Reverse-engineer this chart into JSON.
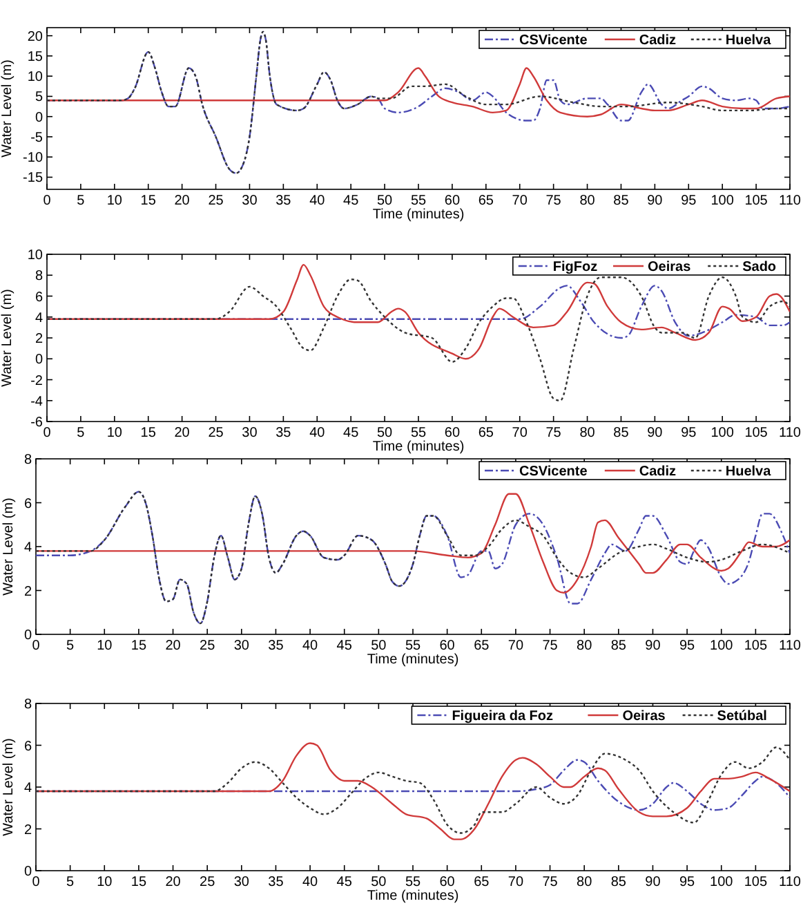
{
  "chart_data": [
    {
      "type": "line",
      "xlabel": "Time (minutes)",
      "ylabel": "Water Level (m)",
      "xlim": [
        0,
        110
      ],
      "xticks": [
        0,
        5,
        10,
        15,
        20,
        25,
        30,
        35,
        40,
        45,
        50,
        55,
        60,
        65,
        70,
        75,
        80,
        85,
        90,
        95,
        100,
        105,
        110
      ],
      "ylim": [
        -18,
        22
      ],
      "yticks": [
        -15,
        -10,
        -5,
        0,
        5,
        10,
        15,
        20
      ],
      "legend": "top right",
      "grid": false,
      "series": [
        {
          "name": "CSVicente",
          "color": "#4b4bb4",
          "line_style": "dashed",
          "x": [
            0,
            11,
            12,
            13,
            15,
            16,
            17,
            18,
            19,
            21,
            22,
            23,
            25,
            27,
            28,
            29,
            30,
            31,
            31.6,
            32,
            32.4,
            33,
            34,
            37,
            38,
            40,
            41,
            42,
            43,
            44,
            46,
            48,
            49,
            50,
            52,
            55,
            57,
            59,
            61,
            63,
            65,
            66,
            68,
            71,
            72,
            73,
            74,
            75,
            76,
            77,
            80,
            82,
            83,
            85,
            86,
            88,
            89,
            91,
            92,
            94,
            95,
            97,
            98,
            100,
            102,
            104,
            105,
            106,
            108,
            110
          ],
          "values": [
            4,
            4,
            4.5,
            7,
            16,
            12,
            6,
            2.5,
            2.5,
            12,
            10,
            3,
            -5,
            -13,
            -14,
            -12,
            -5,
            10,
            19,
            21,
            19,
            10,
            3,
            1.5,
            2,
            8,
            11,
            9,
            4,
            2,
            3,
            5,
            4.5,
            2,
            1,
            2.5,
            5,
            7,
            6,
            4,
            6,
            5,
            1,
            -1,
            -1,
            2,
            9,
            9,
            4,
            3,
            4.5,
            4.5,
            3,
            -1,
            -1,
            6,
            8,
            3,
            2,
            4,
            5,
            7.5,
            7,
            4.5,
            4,
            4.5,
            4,
            2,
            2,
            2.5
          ]
        },
        {
          "name": "Cadiz",
          "color": "#d03a3a",
          "line_style": "solid",
          "x": [
            0,
            50,
            52,
            55,
            56,
            58,
            60,
            63,
            66,
            68,
            70,
            71,
            72,
            74,
            76,
            80,
            82,
            85,
            88,
            90,
            92,
            95,
            97,
            100,
            103,
            105,
            108,
            110
          ],
          "values": [
            4,
            4,
            6,
            12,
            10,
            5,
            3.5,
            2.5,
            1,
            1.5,
            8,
            12,
            10,
            4,
            1,
            0,
            0.5,
            3,
            2,
            1.5,
            1.5,
            3,
            4,
            2.5,
            2,
            2,
            4.5,
            5
          ]
        },
        {
          "name": "Huelva",
          "color": "#333333",
          "line_style": "dotted",
          "x": [
            0,
            11,
            12,
            13,
            15,
            16,
            17,
            18,
            19,
            21,
            22,
            23,
            25,
            27,
            28,
            29,
            30,
            31,
            31.6,
            32,
            32.4,
            33,
            34,
            37,
            38,
            40,
            41,
            42,
            43,
            44,
            46,
            48,
            49,
            51,
            54,
            56,
            59,
            62,
            65,
            68,
            73,
            78,
            82,
            86,
            92,
            97,
            100,
            104,
            108,
            110
          ],
          "values": [
            4,
            4,
            4.5,
            7,
            16,
            12,
            6,
            2.5,
            2.5,
            12,
            10,
            3,
            -5,
            -13,
            -14,
            -12,
            -5,
            10,
            19,
            21,
            19,
            10,
            3,
            1.5,
            2,
            8,
            11,
            9,
            4,
            2,
            3,
            5,
            4.5,
            4.5,
            7.5,
            7.5,
            8,
            5,
            3,
            3,
            5,
            3.5,
            2.5,
            2.5,
            3.5,
            2.5,
            1.5,
            1.5,
            2,
            2
          ]
        }
      ]
    },
    {
      "type": "line",
      "xlabel": "Time (minutes)",
      "ylabel": "Water Level (m)",
      "xlim": [
        0,
        110
      ],
      "xticks": [
        0,
        5,
        10,
        15,
        20,
        25,
        30,
        35,
        40,
        45,
        50,
        55,
        60,
        65,
        70,
        75,
        80,
        85,
        90,
        95,
        100,
        105,
        110
      ],
      "ylim": [
        -6,
        10
      ],
      "yticks": [
        -6,
        -4,
        -2,
        0,
        2,
        4,
        6,
        8,
        10
      ],
      "legend": "top right",
      "grid": false,
      "series": [
        {
          "name": "FigFoz",
          "color": "#4b4bb4",
          "line_style": "dashed",
          "x": [
            0,
            70,
            73,
            76,
            77,
            79,
            81,
            85,
            86,
            88,
            90,
            91,
            93,
            95,
            97,
            100,
            102,
            105,
            107,
            109,
            110
          ],
          "values": [
            3.8,
            3.8,
            5,
            6.8,
            7,
            5.5,
            3.5,
            2,
            2.2,
            5,
            7,
            6.5,
            3.5,
            2.2,
            2.5,
            3.5,
            4.2,
            4,
            3.2,
            3.2,
            3.5
          ]
        },
        {
          "name": "Oeiras",
          "color": "#d03a3a",
          "line_style": "solid",
          "x": [
            0,
            33,
            35,
            37,
            38,
            39,
            41,
            43,
            46,
            49,
            51,
            52,
            53,
            55,
            60,
            62,
            64,
            66,
            67,
            69,
            72,
            75,
            77,
            80,
            81,
            83,
            85,
            88,
            91,
            93,
            96,
            98,
            100,
            101,
            103,
            105,
            107,
            108,
            110
          ],
          "values": [
            3.8,
            3.8,
            4.5,
            7.5,
            9,
            8,
            5,
            4,
            3.5,
            3.5,
            4.5,
            4.8,
            4.5,
            2.5,
            0.5,
            0,
            1,
            4,
            4.8,
            4,
            3,
            3.2,
            4.5,
            7.3,
            7.2,
            5,
            3.5,
            2.8,
            3,
            2.5,
            1.8,
            2.5,
            5,
            4.8,
            3.6,
            4,
            6,
            6.2,
            4.5
          ]
        },
        {
          "name": "Sado",
          "color": "#333333",
          "line_style": "dotted",
          "x": [
            0,
            25,
            27,
            30,
            32,
            34,
            36,
            38,
            39,
            41,
            43,
            45,
            46,
            48,
            50,
            53,
            57,
            60,
            62,
            64,
            66,
            68,
            69,
            71,
            73,
            75,
            76,
            78,
            80,
            82,
            85,
            88,
            90,
            91,
            94,
            96,
            98,
            100,
            102,
            103,
            105,
            107,
            109,
            110
          ],
          "values": [
            3.8,
            3.8,
            4.5,
            6.9,
            6,
            5,
            3,
            1,
            0.8,
            3,
            6,
            7.6,
            7.5,
            5.5,
            4,
            2.5,
            2,
            -0.3,
            1,
            3.5,
            5,
            5.8,
            5.8,
            3.5,
            0,
            -3.8,
            -4,
            1,
            6,
            7.8,
            7.8,
            6,
            3,
            2.5,
            2.5,
            2,
            6,
            7.8,
            6,
            4,
            3.5,
            5,
            5.5,
            5
          ]
        }
      ]
    },
    {
      "type": "line",
      "xlabel": "Time (minutes)",
      "ylabel": "Water Level (m)",
      "xlim": [
        0,
        110
      ],
      "xticks": [
        0,
        5,
        10,
        15,
        20,
        25,
        30,
        35,
        40,
        45,
        50,
        55,
        60,
        65,
        70,
        75,
        80,
        85,
        90,
        95,
        100,
        105,
        110
      ],
      "ylim": [
        0,
        8
      ],
      "yticks": [
        0,
        2,
        4,
        6,
        8
      ],
      "legend": "top right",
      "grid": false,
      "series": [
        {
          "name": "CSVicente",
          "color": "#4b4bb4",
          "line_style": "dashed",
          "x": [
            0,
            5,
            8,
            10,
            13,
            15,
            16,
            17,
            18,
            19,
            20,
            21,
            22,
            23,
            24,
            25,
            26,
            27,
            28,
            29,
            30,
            31,
            32,
            33,
            34,
            35,
            36,
            38,
            39,
            40,
            42,
            44,
            45,
            47,
            49,
            51,
            52,
            53,
            55,
            56,
            57,
            58,
            60,
            62,
            63,
            65,
            66,
            67,
            68,
            70,
            72,
            74,
            76,
            78,
            79,
            81,
            83,
            84,
            86,
            88,
            89,
            90,
            92,
            94,
            95,
            96,
            97,
            98,
            100,
            101,
            102,
            104,
            105,
            106,
            107,
            109,
            110
          ],
          "values": [
            3.6,
            3.6,
            3.8,
            4.3,
            5.8,
            6.5,
            6,
            4.5,
            2.5,
            1.5,
            1.6,
            2.5,
            2.3,
            1,
            0.5,
            1.5,
            3.5,
            4.5,
            3.5,
            2.5,
            3,
            5,
            6.3,
            5.5,
            3.5,
            2.8,
            3.2,
            4.5,
            4.7,
            4.5,
            3.5,
            3.4,
            3.6,
            4.5,
            4.3,
            3.2,
            2.4,
            2.2,
            3.2,
            4.5,
            5.4,
            5.4,
            4.5,
            2.6,
            2.7,
            3.8,
            3.8,
            3,
            3.2,
            5,
            5.5,
            5,
            3.5,
            1.4,
            1.4,
            2.5,
            3.7,
            4.1,
            3.8,
            4.8,
            5.4,
            5.4,
            4.5,
            3.3,
            3.2,
            3.8,
            4.3,
            4,
            2.6,
            2.3,
            2.4,
            3.3,
            4.5,
            5.5,
            5.5,
            4.5,
            3.7
          ]
        },
        {
          "name": "Cadiz",
          "color": "#d03a3a",
          "line_style": "solid",
          "x": [
            0,
            55,
            60,
            63,
            65,
            67,
            69,
            70,
            72,
            74,
            76,
            77,
            79,
            81,
            82,
            83,
            85,
            88,
            89,
            90,
            92,
            94,
            95,
            97,
            100,
            101,
            103,
            104,
            106,
            108,
            110
          ],
          "values": [
            3.8,
            3.8,
            3.6,
            3.5,
            3.7,
            5,
            6.4,
            6.4,
            5,
            3.3,
            2,
            1.9,
            2.5,
            4,
            5.1,
            5.2,
            4.4,
            3.2,
            2.8,
            2.8,
            3.4,
            4.1,
            4.1,
            3.5,
            2.9,
            3,
            3.8,
            4.2,
            4,
            4,
            4.3
          ]
        },
        {
          "name": "Huelva",
          "color": "#333333",
          "line_style": "dotted",
          "x": [
            0,
            5,
            8,
            10,
            13,
            15,
            16,
            17,
            18,
            19,
            20,
            21,
            22,
            23,
            24,
            25,
            26,
            27,
            28,
            29,
            30,
            31,
            32,
            33,
            34,
            35,
            36,
            38,
            39,
            40,
            42,
            44,
            45,
            47,
            49,
            51,
            52,
            53,
            55,
            56,
            57,
            58,
            60,
            62,
            64,
            66,
            68,
            70,
            72,
            74,
            76,
            78,
            80,
            82,
            85,
            88,
            90,
            92,
            95,
            98,
            100,
            103,
            106,
            110
          ],
          "values": [
            3.8,
            3.8,
            3.8,
            4.3,
            5.8,
            6.5,
            6,
            4.5,
            2.5,
            1.5,
            1.6,
            2.5,
            2.3,
            1,
            0.5,
            1.5,
            3.5,
            4.5,
            3.5,
            2.5,
            3,
            5,
            6.3,
            5.5,
            3.5,
            2.8,
            3.2,
            4.5,
            4.7,
            4.5,
            3.5,
            3.4,
            3.6,
            4.5,
            4.3,
            3.2,
            2.4,
            2.2,
            3.2,
            4.5,
            5.4,
            5.4,
            4.5,
            3.6,
            3.6,
            4,
            4.8,
            5.2,
            4.9,
            4.5,
            3.5,
            2.8,
            2.6,
            3,
            3.7,
            4,
            4.1,
            3.9,
            3.5,
            3.3,
            3.4,
            3.8,
            4.1,
            3.7
          ]
        }
      ]
    },
    {
      "type": "line",
      "xlabel": "Time (minutes)",
      "ylabel": "Water Level (m)",
      "xlim": [
        0,
        110
      ],
      "xticks": [
        0,
        5,
        10,
        15,
        20,
        25,
        30,
        35,
        40,
        45,
        50,
        55,
        60,
        65,
        70,
        75,
        80,
        85,
        90,
        95,
        100,
        105,
        110
      ],
      "ylim": [
        0,
        8
      ],
      "yticks": [
        0,
        2,
        4,
        6,
        8
      ],
      "legend": "top right",
      "grid": false,
      "series": [
        {
          "name": "Figueira da Foz",
          "color": "#4b4bb4",
          "line_style": "dashed",
          "x": [
            0,
            70,
            73,
            75,
            77,
            79,
            80,
            82,
            85,
            88,
            90,
            92,
            93,
            95,
            97,
            99,
            101,
            103,
            105,
            106,
            108,
            110
          ],
          "values": [
            3.8,
            3.8,
            3.9,
            4.1,
            4.8,
            5.3,
            5.2,
            4.3,
            3.3,
            2.9,
            3.2,
            4,
            4.2,
            3.8,
            3.2,
            2.9,
            3,
            3.6,
            4.3,
            4.5,
            4.2,
            3.5
          ]
        },
        {
          "name": "Oeiras",
          "color": "#d03a3a",
          "line_style": "solid",
          "x": [
            0,
            34,
            36,
            38,
            40,
            41,
            43,
            45,
            47,
            49,
            52,
            54,
            57,
            59,
            61,
            62,
            64,
            66,
            68,
            70,
            71,
            73,
            75,
            77,
            78,
            80,
            82,
            83,
            85,
            88,
            90,
            92,
            95,
            97,
            99,
            101,
            103,
            105,
            107,
            110
          ],
          "values": [
            3.8,
            3.8,
            4.3,
            5.5,
            6.1,
            6,
            4.8,
            4.3,
            4.3,
            4,
            3.2,
            2.7,
            2.5,
            2,
            1.5,
            1.5,
            2,
            3.2,
            4.5,
            5.3,
            5.4,
            5.1,
            4.5,
            4,
            4,
            4.5,
            4.9,
            4.8,
            3.9,
            2.8,
            2.6,
            2.6,
            3,
            3.8,
            4.4,
            4.4,
            4.5,
            4.7,
            4.4,
            3.8
          ]
        },
        {
          "name": "Setúbal",
          "color": "#333333",
          "line_style": "dotted",
          "x": [
            0,
            26,
            28,
            30,
            32,
            34,
            36,
            38,
            40,
            42,
            44,
            46,
            48,
            50,
            52,
            54,
            56,
            58,
            60,
            62,
            64,
            65,
            68,
            70,
            73,
            75,
            77,
            79,
            81,
            83,
            86,
            88,
            90,
            93,
            96,
            98,
            100,
            102,
            104,
            106,
            108,
            110
          ],
          "values": [
            3.8,
            3.8,
            4.2,
            4.9,
            5.2,
            4.9,
            4.2,
            3.5,
            3,
            2.7,
            3,
            3.7,
            4.4,
            4.7,
            4.5,
            4.3,
            4.2,
            3.4,
            2.2,
            1.8,
            2.2,
            2.8,
            2.8,
            3.2,
            4,
            3.5,
            3.2,
            3.6,
            4.8,
            5.6,
            5.3,
            4.8,
            3.8,
            2.8,
            2.3,
            3.3,
            4.6,
            5.2,
            4.9,
            5.2,
            5.9,
            5.3
          ]
        }
      ]
    }
  ]
}
